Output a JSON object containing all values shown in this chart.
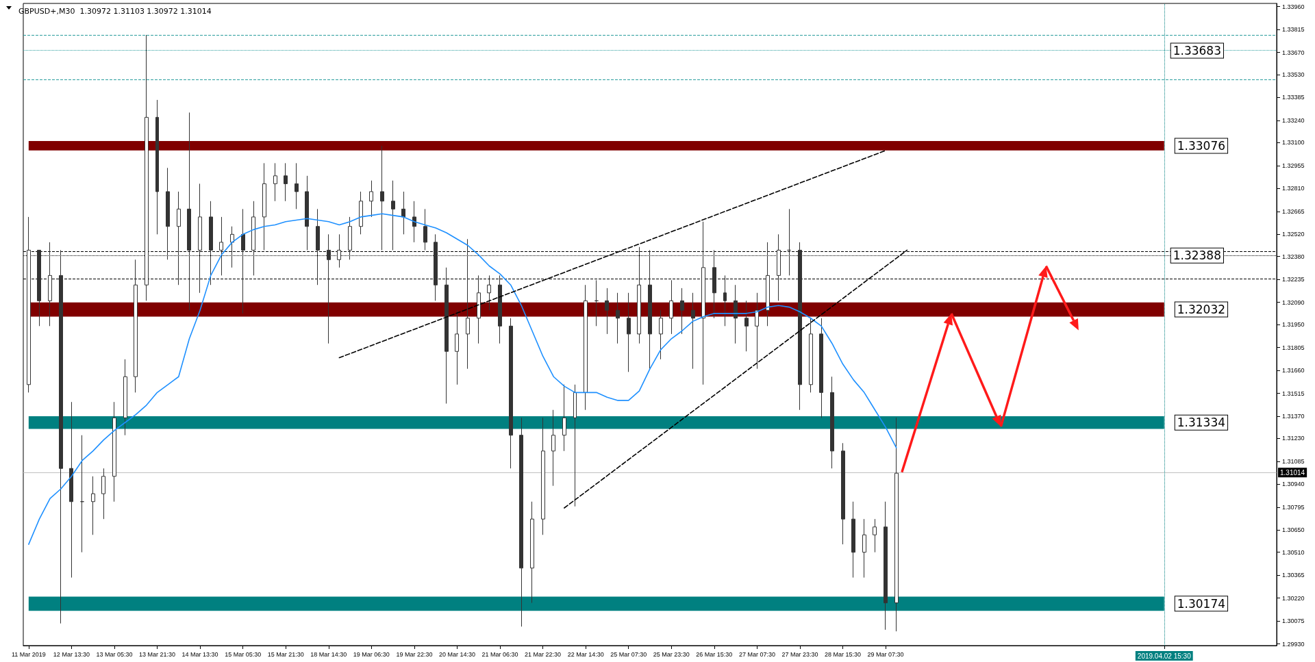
{
  "chart_data": {
    "type": "candlestick",
    "title": "GBPUSD+,M30  1.30972 1.31103 1.30972 1.31014",
    "color": "#333333",
    "categories": [
      "11 Mar 2019",
      null,
      null,
      null,
      "12 Mar 13:30",
      null,
      null,
      null,
      "13 Mar 05:30",
      null,
      null,
      null,
      "13 Mar 21:30",
      null,
      null,
      null,
      "14 Mar 13:30",
      null,
      null,
      null,
      "15 Mar 05:30",
      null,
      null,
      null,
      "15 Mar 21:30",
      null,
      null,
      null,
      "18 Mar 14:30",
      null,
      null,
      null,
      "19 Mar 06:30",
      null,
      null,
      null,
      "19 Mar 22:30",
      null,
      null,
      null,
      "20 Mar 14:30",
      null,
      null,
      null,
      "21 Mar 06:30",
      null,
      null,
      null,
      "21 Mar 22:30",
      null,
      null,
      null,
      "22 Mar 14:30",
      null,
      null,
      null,
      "25 Mar 07:30",
      null,
      null,
      null,
      "25 Mar 23:30",
      null,
      null,
      null,
      "26 Mar 15:30",
      null,
      null,
      null,
      "27 Mar 07:30",
      null,
      null,
      null,
      "27 Mar 23:30",
      null,
      null,
      null,
      "28 Mar 15:30",
      null,
      null,
      null,
      "29 Mar 07:30",
      null,
      null,
      null,
      null,
      null,
      null,
      null,
      null,
      null,
      null,
      null,
      null,
      null,
      null,
      null,
      null,
      null,
      null,
      null,
      null,
      null,
      null,
      null,
      null,
      null,
      "2019.04.02 15:30",
      null,
      null,
      null,
      null,
      null,
      null,
      null,
      null,
      null,
      null
    ],
    "ohlc": [
      [
        1.3157,
        1.3263,
        1.3152,
        1.3242
      ],
      [
        1.3242,
        1.3242,
        1.3194,
        1.321
      ],
      [
        1.321,
        1.3247,
        1.3194,
        1.3226
      ],
      [
        1.3226,
        1.3242,
        1.3006,
        1.3104
      ],
      [
        1.3104,
        1.3146,
        1.3035,
        1.3083
      ],
      [
        1.3083,
        1.3125,
        1.3051,
        1.3083
      ],
      [
        1.3083,
        1.3099,
        1.3062,
        1.3088
      ],
      [
        1.3088,
        1.3104,
        1.3072,
        1.3099
      ],
      [
        1.3099,
        1.3146,
        1.3083,
        1.3136
      ],
      [
        1.3136,
        1.3173,
        1.3125,
        1.3162
      ],
      [
        1.3162,
        1.3236,
        1.3152,
        1.322
      ],
      [
        1.322,
        1.3378,
        1.321,
        1.3326
      ],
      [
        1.3326,
        1.3337,
        1.3252,
        1.3279
      ],
      [
        1.3279,
        1.3294,
        1.3236,
        1.3257
      ],
      [
        1.3257,
        1.3279,
        1.322,
        1.3268
      ],
      [
        1.3268,
        1.3329,
        1.3204,
        1.3242
      ],
      [
        1.3242,
        1.3284,
        1.3215,
        1.3263
      ],
      [
        1.3263,
        1.3273,
        1.322,
        1.3242
      ],
      [
        1.3242,
        1.3263,
        1.3226,
        1.3247
      ],
      [
        1.3247,
        1.3257,
        1.3231,
        1.3252
      ],
      [
        1.3252,
        1.3268,
        1.3202,
        1.3242
      ],
      [
        1.3242,
        1.3273,
        1.3226,
        1.3263
      ],
      [
        1.3263,
        1.3297,
        1.3242,
        1.3284
      ],
      [
        1.3284,
        1.3297,
        1.3273,
        1.3289
      ],
      [
        1.3289,
        1.3297,
        1.3273,
        1.3284
      ],
      [
        1.3284,
        1.3297,
        1.3268,
        1.3279
      ],
      [
        1.3279,
        1.3289,
        1.3242,
        1.3257
      ],
      [
        1.3257,
        1.3268,
        1.322,
        1.3242
      ],
      [
        1.3242,
        1.3252,
        1.3183,
        1.3236
      ],
      [
        1.3236,
        1.3252,
        1.3231,
        1.3242
      ],
      [
        1.3242,
        1.3263,
        1.3236,
        1.3257
      ],
      [
        1.3257,
        1.3279,
        1.3252,
        1.3273
      ],
      [
        1.3273,
        1.3286,
        1.3263,
        1.3279
      ],
      [
        1.3279,
        1.3308,
        1.3242,
        1.3273
      ],
      [
        1.3273,
        1.3286,
        1.3242,
        1.3268
      ],
      [
        1.3268,
        1.3279,
        1.3252,
        1.3263
      ],
      [
        1.3263,
        1.3273,
        1.3247,
        1.3257
      ],
      [
        1.3257,
        1.3268,
        1.3242,
        1.3247
      ],
      [
        1.3247,
        1.3252,
        1.321,
        1.322
      ],
      [
        1.322,
        1.3231,
        1.3145,
        1.3178
      ],
      [
        1.3178,
        1.3204,
        1.3157,
        1.3189
      ],
      [
        1.3189,
        1.3249,
        1.3167,
        1.3199
      ],
      [
        1.3199,
        1.3226,
        1.3183,
        1.3215
      ],
      [
        1.3215,
        1.3226,
        1.3204,
        1.322
      ],
      [
        1.322,
        1.3226,
        1.3183,
        1.3194
      ],
      [
        1.3194,
        1.3199,
        1.3104,
        1.3125
      ],
      [
        1.3125,
        1.3136,
        1.3004,
        1.3041
      ],
      [
        1.3041,
        1.3083,
        1.3019,
        1.3072
      ],
      [
        1.3072,
        1.3136,
        1.3062,
        1.3115
      ],
      [
        1.3115,
        1.3141,
        1.3093,
        1.3125
      ],
      [
        1.3125,
        1.3157,
        1.3115,
        1.3136
      ],
      [
        1.3136,
        1.3157,
        1.308,
        1.3152
      ],
      [
        1.3152,
        1.322,
        1.3141,
        1.321
      ],
      [
        1.321,
        1.3223,
        1.3194,
        1.321
      ],
      [
        1.321,
        1.3218,
        1.3189,
        1.3204
      ],
      [
        1.3204,
        1.3215,
        1.3183,
        1.3199
      ],
      [
        1.3199,
        1.3215,
        1.3165,
        1.3189
      ],
      [
        1.3189,
        1.3244,
        1.3183,
        1.322
      ],
      [
        1.322,
        1.3242,
        1.3167,
        1.3189
      ],
      [
        1.3189,
        1.3204,
        1.3173,
        1.3199
      ],
      [
        1.3199,
        1.3223,
        1.3189,
        1.321
      ],
      [
        1.321,
        1.3218,
        1.3189,
        1.3204
      ],
      [
        1.3204,
        1.3215,
        1.3167,
        1.3199
      ],
      [
        1.3199,
        1.326,
        1.3157,
        1.3231
      ],
      [
        1.3231,
        1.3242,
        1.3199,
        1.3215
      ],
      [
        1.3215,
        1.3226,
        1.3194,
        1.321
      ],
      [
        1.321,
        1.322,
        1.3183,
        1.3199
      ],
      [
        1.3199,
        1.321,
        1.3178,
        1.3194
      ],
      [
        1.3194,
        1.3215,
        1.3167,
        1.3204
      ],
      [
        1.3204,
        1.3247,
        1.3194,
        1.3226
      ],
      [
        1.3226,
        1.3252,
        1.321,
        1.3242
      ],
      [
        1.3242,
        1.3268,
        1.3226,
        1.3242
      ],
      [
        1.3242,
        1.3247,
        1.3141,
        1.3157
      ],
      [
        1.3157,
        1.3199,
        1.3152,
        1.3189
      ],
      [
        1.3189,
        1.3199,
        1.3136,
        1.3152
      ],
      [
        1.3152,
        1.3162,
        1.3104,
        1.3115
      ],
      [
        1.3115,
        1.312,
        1.3056,
        1.3072
      ],
      [
        1.3072,
        1.3083,
        1.3035,
        1.3051
      ],
      [
        1.3051,
        1.3072,
        1.3035,
        1.3062
      ],
      [
        1.3062,
        1.3072,
        1.3051,
        1.3067
      ],
      [
        1.3067,
        1.3083,
        1.3002,
        1.3019
      ],
      [
        1.3019,
        1.3136,
        1.3001,
        1.3101
      ],
      null,
      null,
      null,
      null,
      null,
      null,
      null,
      null,
      null,
      null,
      null,
      null,
      null,
      null,
      null,
      null,
      null,
      null,
      null,
      null,
      null,
      null,
      null,
      null,
      null,
      null,
      null,
      null,
      null,
      null,
      null,
      null,
      null,
      null,
      null
    ],
    "series": [
      {
        "type": "line",
        "color": "#1e90ff",
        "values": [
          1.3056,
          1.3072,
          1.3085,
          1.3091,
          1.3099,
          1.3109,
          1.3115,
          1.3122,
          1.3128,
          1.3133,
          1.3138,
          1.3144,
          1.3152,
          1.3157,
          1.3162,
          1.3186,
          1.3204,
          1.3226,
          1.3239,
          1.3247,
          1.3252,
          1.3255,
          1.3257,
          1.3258,
          1.326,
          1.3261,
          1.3262,
          1.3261,
          1.326,
          1.3258,
          1.326,
          1.3263,
          1.3264,
          1.3265,
          1.3264,
          1.3263,
          1.326,
          1.3258,
          1.3256,
          1.3253,
          1.3249,
          1.3245,
          1.3239,
          1.3232,
          1.3227,
          1.322,
          1.3207,
          1.3191,
          1.3175,
          1.3162,
          1.3156,
          1.3152,
          1.3152,
          1.3152,
          1.3149,
          1.3147,
          1.3147,
          1.3153,
          1.3167,
          1.3179,
          1.3186,
          1.3191,
          1.3197,
          1.32,
          1.3202,
          1.3202,
          1.3202,
          1.3202,
          1.3203,
          1.3206,
          1.3207,
          1.3206,
          1.3203,
          1.3199,
          1.3194,
          1.3183,
          1.317,
          1.316,
          1.3152,
          1.3141,
          1.313,
          1.3117,
          null,
          null,
          null,
          null,
          null,
          null,
          null,
          null,
          null,
          null,
          null,
          null,
          null,
          null,
          null,
          null,
          null,
          null,
          null,
          null,
          null,
          null,
          null,
          null,
          null,
          null,
          null,
          null,
          null,
          null,
          null,
          null,
          null,
          null,
          null
        ]
      },
      {
        "type": "line",
        "color": "#000000",
        "line_style": "dashed",
        "values": [
          null,
          null,
          null,
          null,
          null,
          null,
          null,
          null,
          null,
          null,
          null,
          null,
          null,
          null,
          null,
          null,
          null,
          null,
          null,
          null,
          null,
          null,
          null,
          null,
          null,
          null,
          null,
          null,
          null,
          1.3174,
          null,
          null,
          null,
          null,
          null,
          null,
          null,
          null,
          null,
          null,
          null,
          null,
          null,
          null,
          null,
          null,
          null,
          null,
          null,
          null,
          null,
          null,
          null,
          null,
          null,
          null,
          null,
          null,
          null,
          null,
          null,
          null,
          null,
          null,
          null,
          null,
          null,
          null,
          null,
          null,
          null,
          null,
          null,
          null,
          null,
          null,
          null,
          null,
          null,
          null,
          1.3305,
          null,
          null,
          null,
          null,
          null,
          null,
          null,
          null,
          null,
          null,
          null,
          null,
          null,
          null,
          null,
          null,
          null,
          null,
          null,
          null,
          null,
          null,
          null,
          null,
          null,
          null,
          null,
          null,
          null,
          null,
          null,
          null,
          null,
          null,
          null,
          null
        ]
      },
      {
        "type": "line",
        "color": "#000000",
        "line_style": "dashed",
        "values": [
          null,
          null,
          null,
          null,
          null,
          null,
          null,
          null,
          null,
          null,
          null,
          null,
          null,
          null,
          null,
          null,
          null,
          null,
          null,
          null,
          null,
          null,
          null,
          null,
          null,
          null,
          null,
          null,
          null,
          null,
          null,
          null,
          null,
          null,
          null,
          null,
          null,
          null,
          null,
          null,
          null,
          null,
          null,
          null,
          null,
          null,
          null,
          null,
          null,
          null,
          1.3079,
          null,
          null,
          null,
          null,
          null,
          null,
          null,
          null,
          null,
          null,
          null,
          null,
          null,
          null,
          null,
          null,
          null,
          null,
          null,
          null,
          null,
          null,
          null,
          null,
          null,
          null,
          null,
          null,
          null,
          null,
          null,
          1.3242,
          null,
          null,
          null,
          null,
          null,
          null,
          null,
          null,
          null,
          null,
          null,
          null,
          null,
          null,
          null,
          null,
          null,
          null,
          null,
          null,
          null,
          null,
          null,
          null,
          null,
          null,
          null,
          null,
          null,
          null,
          null,
          null,
          null,
          null
        ]
      }
    ],
    "marker": "none",
    "ylim": [
      1.2992,
      1.3398
    ],
    "yticks": [
      {
        "value": 1.2993,
        "label": "1.29930"
      },
      {
        "value": 1.30075,
        "label": "1.30075"
      },
      {
        "value": 1.3022,
        "label": "1.30220"
      },
      {
        "value": 1.30365,
        "label": "1.30365"
      },
      {
        "value": 1.3051,
        "label": "1.30510"
      },
      {
        "value": 1.3065,
        "label": "1.30650"
      },
      {
        "value": 1.30795,
        "label": "1.30795"
      },
      {
        "value": 1.3094,
        "label": "1.30940"
      },
      {
        "value": 1.31085,
        "label": "1.31085"
      },
      {
        "value": 1.3123,
        "label": "1.31230"
      },
      {
        "value": 1.3137,
        "label": "1.31370"
      },
      {
        "value": 1.31515,
        "label": "1.31515"
      },
      {
        "value": 1.3166,
        "label": "1.31660"
      },
      {
        "value": 1.31805,
        "label": "1.31805"
      },
      {
        "value": 1.3195,
        "label": "1.31950"
      },
      {
        "value": 1.3209,
        "label": "1.32090"
      },
      {
        "value": 1.32235,
        "label": "1.32235"
      },
      {
        "value": 1.3238,
        "label": "1.32380"
      },
      {
        "value": 1.3252,
        "label": "1.32520"
      },
      {
        "value": 1.32665,
        "label": "1.32665"
      },
      {
        "value": 1.3281,
        "label": "1.32810"
      },
      {
        "value": 1.32955,
        "label": "1.32955"
      },
      {
        "value": 1.331,
        "label": "1.33100"
      },
      {
        "value": 1.3324,
        "label": "1.33240"
      },
      {
        "value": 1.33385,
        "label": "1.33385"
      },
      {
        "value": 1.3353,
        "label": "1.33530"
      },
      {
        "value": 1.3367,
        "label": "1.33670"
      },
      {
        "value": 1.33815,
        "label": "1.33815"
      },
      {
        "value": 1.3396,
        "label": "1.33960"
      }
    ],
    "bands": [
      {
        "axis": "y",
        "from": 1.3305,
        "to": 1.3311,
        "label": "1.33076",
        "color": "#800000"
      },
      {
        "axis": "y",
        "from": 1.32,
        "to": 1.3209,
        "label": "1.32032",
        "color": "#800000"
      },
      {
        "axis": "y",
        "from": 1.3129,
        "to": 1.3137,
        "label": "1.31334",
        "color": "#008080"
      },
      {
        "axis": "y",
        "from": 1.3014,
        "to": 1.3023,
        "label": "1.30174",
        "color": "#008080"
      }
    ],
    "ref_lines": [
      {
        "axis": "y",
        "value": 1.3378,
        "color": "#2a9d9d",
        "line_style": "dashed"
      },
      {
        "axis": "y",
        "value": 1.335,
        "color": "#2a9d9d",
        "line_style": "dashed"
      },
      {
        "axis": "y",
        "value": 1.33683,
        "label": "1.33683",
        "color": "#2a9d9d",
        "line_style": "dotted"
      },
      {
        "axis": "y",
        "value": 1.32388,
        "label": "1.32388",
        "color": "#000000",
        "line_style": "dotted"
      },
      {
        "axis": "y",
        "value": 1.3241,
        "color": "#000000",
        "line_style": "dashed"
      },
      {
        "axis": "y",
        "value": 1.3224,
        "color": "#000000",
        "line_style": "dashed"
      },
      {
        "axis": "y",
        "value": 1.31014,
        "label": "1.31014",
        "color": "#c0c0c0"
      },
      {
        "axis": "x",
        "value": "2019.04.02 15:30",
        "color": "#008080",
        "line_style": "dotted"
      }
    ]
  }
}
